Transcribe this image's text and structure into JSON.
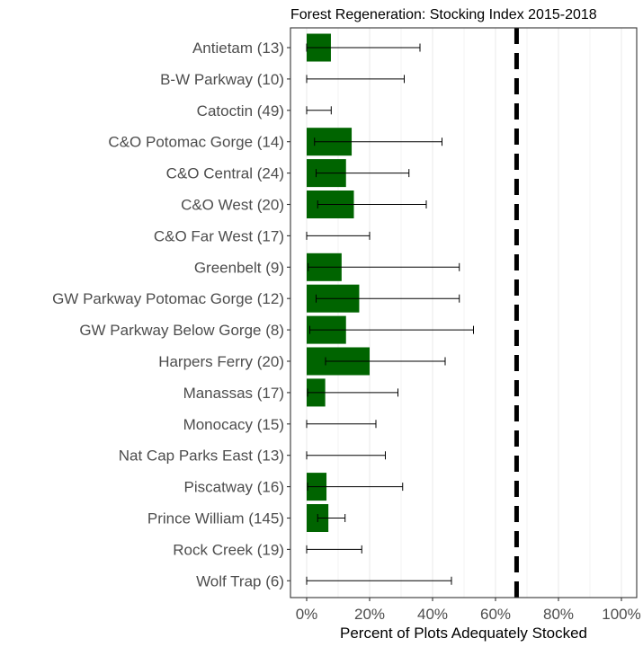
{
  "chart_data": {
    "type": "bar",
    "title": "Forest Regeneration: Stocking Index 2015-2018",
    "xlabel": "Percent of Plots Adequately Stocked",
    "ylabel": "",
    "xlim": [
      0,
      100
    ],
    "x_ticks": [
      0,
      20,
      40,
      60,
      80,
      100
    ],
    "x_tick_labels": [
      "0%",
      "20%",
      "40%",
      "60%",
      "80%",
      "100%"
    ],
    "orientation": "horizontal",
    "grid": "vertical major and minor lines",
    "bar_color": "#006400",
    "reference_line": {
      "value": 66.7,
      "style": "dashed",
      "color": "#000000"
    },
    "categories": [
      "Antietam (13)",
      "B-W Parkway (10)",
      "Catoctin (49)",
      "C&O Potomac Gorge (14)",
      "C&O Central (24)",
      "C&O West (20)",
      "C&O Far West (17)",
      "Greenbelt (9)",
      "GW Parkway Potomac Gorge (12)",
      "GW Parkway Below Gorge (8)",
      "Harpers Ferry (20)",
      "Manassas (17)",
      "Monocacy (15)",
      "Nat Cap Parks East (13)",
      "Piscatway (16)",
      "Prince William (145)",
      "Rock Creek (19)",
      "Wolf Trap (6)"
    ],
    "values": [
      7.7,
      0,
      0,
      14.3,
      12.5,
      15.0,
      0,
      11.1,
      16.7,
      12.5,
      20.0,
      5.9,
      0,
      0,
      6.3,
      6.9,
      0,
      0
    ],
    "error_low": [
      0,
      0,
      0,
      2.5,
      3.0,
      3.5,
      0,
      0.5,
      3.0,
      1.0,
      6.0,
      0.3,
      0,
      0,
      0.3,
      3.5,
      0,
      0
    ],
    "error_high": [
      36.0,
      31.0,
      7.8,
      43.0,
      32.5,
      38.0,
      20.0,
      48.5,
      48.5,
      53.0,
      44.0,
      29.0,
      22.0,
      25.0,
      30.5,
      12.2,
      17.5,
      46.0
    ]
  }
}
